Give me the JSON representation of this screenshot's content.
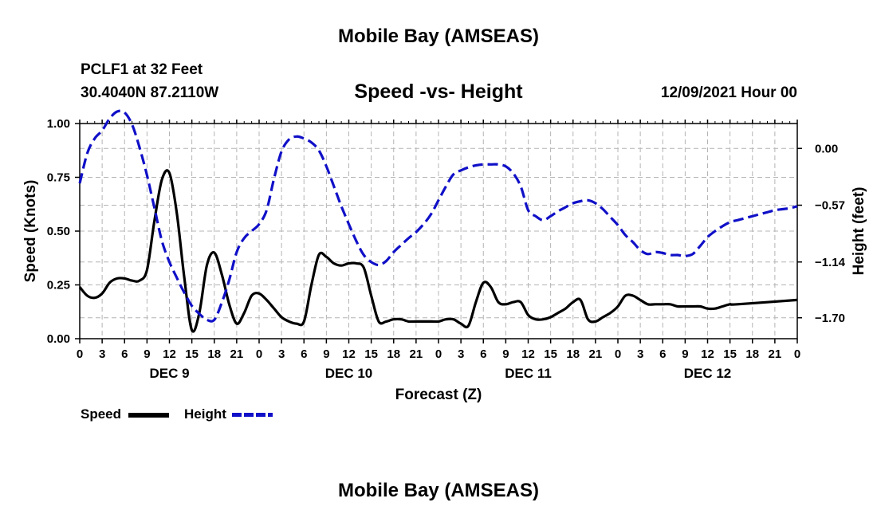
{
  "page": {
    "title": "Mobile Bay (AMSEAS)",
    "title_repeat": "Mobile Bay (AMSEAS)",
    "station": "PCLF1 at 32 Feet",
    "location": "30.4040N  87.2110W",
    "chart_subtitle": "Speed -vs- Height",
    "datetime": "12/09/2021 Hour 00"
  },
  "chart_data": {
    "type": "line",
    "title": "Speed -vs- Height",
    "xlabel": "Forecast (Z)",
    "ylabel": "Speed (Knots)",
    "y2label": "Height (feet)",
    "x_range_hours": [
      0,
      96
    ],
    "ylim": [
      0,
      1.0
    ],
    "y2lim": [
      -1.91,
      0.25
    ],
    "yticks": [
      "0.00",
      "0.25",
      "0.50",
      "0.75",
      "1.00"
    ],
    "y2ticks": [
      "0.00",
      "−0.57",
      "−1.14",
      "−1.70"
    ],
    "y2tick_values": [
      0.0,
      -0.57,
      -1.14,
      -1.7
    ],
    "xtick_labels": [
      "0",
      "3",
      "6",
      "9",
      "12",
      "15",
      "18",
      "21",
      "0",
      "3",
      "6",
      "9",
      "12",
      "15",
      "18",
      "21",
      "0",
      "3",
      "6",
      "9",
      "12",
      "15",
      "18",
      "21",
      "0",
      "3",
      "6",
      "9",
      "12",
      "15",
      "18",
      "21",
      "0"
    ],
    "day_labels": [
      {
        "label": "DEC 9",
        "hour": 12
      },
      {
        "label": "DEC 10",
        "hour": 36
      },
      {
        "label": "DEC 11",
        "hour": 60
      },
      {
        "label": "DEC 12",
        "hour": 84
      }
    ],
    "grid": true,
    "legend_position": "bottom-left",
    "series": [
      {
        "name": "Speed",
        "axis": "left",
        "color": "#000000",
        "style": "solid",
        "points": [
          [
            0,
            0.24
          ],
          [
            1,
            0.2
          ],
          [
            2,
            0.19
          ],
          [
            3,
            0.21
          ],
          [
            4,
            0.26
          ],
          [
            5,
            0.28
          ],
          [
            6,
            0.28
          ],
          [
            7,
            0.27
          ],
          [
            8,
            0.27
          ],
          [
            9,
            0.32
          ],
          [
            10,
            0.55
          ],
          [
            11,
            0.74
          ],
          [
            12,
            0.77
          ],
          [
            13,
            0.58
          ],
          [
            14,
            0.28
          ],
          [
            15,
            0.04
          ],
          [
            16,
            0.12
          ],
          [
            17,
            0.34
          ],
          [
            18,
            0.4
          ],
          [
            19,
            0.3
          ],
          [
            20,
            0.16
          ],
          [
            21,
            0.07
          ],
          [
            22,
            0.12
          ],
          [
            23,
            0.2
          ],
          [
            24,
            0.21
          ],
          [
            25,
            0.18
          ],
          [
            26,
            0.14
          ],
          [
            27,
            0.1
          ],
          [
            28,
            0.08
          ],
          [
            29,
            0.07
          ],
          [
            30,
            0.08
          ],
          [
            31,
            0.25
          ],
          [
            32,
            0.39
          ],
          [
            33,
            0.38
          ],
          [
            34,
            0.35
          ],
          [
            35,
            0.34
          ],
          [
            36,
            0.35
          ],
          [
            37,
            0.35
          ],
          [
            38,
            0.33
          ],
          [
            39,
            0.2
          ],
          [
            40,
            0.08
          ],
          [
            41,
            0.08
          ],
          [
            42,
            0.09
          ],
          [
            43,
            0.09
          ],
          [
            44,
            0.08
          ],
          [
            45,
            0.08
          ],
          [
            46,
            0.08
          ],
          [
            47,
            0.08
          ],
          [
            48,
            0.08
          ],
          [
            49,
            0.09
          ],
          [
            50,
            0.09
          ],
          [
            51,
            0.07
          ],
          [
            52,
            0.06
          ],
          [
            53,
            0.17
          ],
          [
            54,
            0.26
          ],
          [
            55,
            0.24
          ],
          [
            56,
            0.17
          ],
          [
            57,
            0.16
          ],
          [
            58,
            0.17
          ],
          [
            59,
            0.17
          ],
          [
            60,
            0.11
          ],
          [
            61,
            0.09
          ],
          [
            62,
            0.09
          ],
          [
            63,
            0.1
          ],
          [
            64,
            0.12
          ],
          [
            65,
            0.14
          ],
          [
            66,
            0.17
          ],
          [
            67,
            0.18
          ],
          [
            68,
            0.09
          ],
          [
            69,
            0.08
          ],
          [
            70,
            0.1
          ],
          [
            71,
            0.12
          ],
          [
            72,
            0.15
          ],
          [
            73,
            0.2
          ],
          [
            74,
            0.2
          ],
          [
            75,
            0.18
          ],
          [
            76,
            0.16
          ],
          [
            77,
            0.16
          ],
          [
            78,
            0.16
          ],
          [
            79,
            0.16
          ],
          [
            80,
            0.15
          ],
          [
            81,
            0.15
          ],
          [
            82,
            0.15
          ],
          [
            83,
            0.15
          ],
          [
            84,
            0.14
          ],
          [
            85,
            0.14
          ],
          [
            86,
            0.15
          ],
          [
            87,
            0.16
          ],
          [
            88,
            0.16
          ],
          [
            96,
            0.18
          ]
        ]
      },
      {
        "name": "Height",
        "axis": "right",
        "color": "#1010c8",
        "style": "dashed",
        "points": [
          [
            0,
            -0.35
          ],
          [
            1,
            -0.05
          ],
          [
            2,
            0.1
          ],
          [
            3,
            0.18
          ],
          [
            4,
            0.3
          ],
          [
            5,
            0.37
          ],
          [
            6,
            0.36
          ],
          [
            7,
            0.24
          ],
          [
            8,
            0.01
          ],
          [
            9,
            -0.27
          ],
          [
            10,
            -0.6
          ],
          [
            11,
            -0.93
          ],
          [
            12,
            -1.14
          ],
          [
            13,
            -1.3
          ],
          [
            14,
            -1.45
          ],
          [
            15,
            -1.58
          ],
          [
            16,
            -1.66
          ],
          [
            17,
            -1.72
          ],
          [
            18,
            -1.72
          ],
          [
            19,
            -1.55
          ],
          [
            20,
            -1.32
          ],
          [
            21,
            -1.04
          ],
          [
            22,
            -0.9
          ],
          [
            23,
            -0.83
          ],
          [
            24,
            -0.76
          ],
          [
            25,
            -0.62
          ],
          [
            26,
            -0.3
          ],
          [
            27,
            -0.03
          ],
          [
            28,
            0.09
          ],
          [
            29,
            0.12
          ],
          [
            30,
            0.1
          ],
          [
            31,
            0.06
          ],
          [
            32,
            -0.02
          ],
          [
            33,
            -0.18
          ],
          [
            34,
            -0.38
          ],
          [
            35,
            -0.58
          ],
          [
            36,
            -0.76
          ],
          [
            37,
            -0.93
          ],
          [
            38,
            -1.07
          ],
          [
            39,
            -1.14
          ],
          [
            40,
            -1.17
          ],
          [
            41,
            -1.13
          ],
          [
            42,
            -1.04
          ],
          [
            43,
            -0.97
          ],
          [
            44,
            -0.9
          ],
          [
            45,
            -0.84
          ],
          [
            46,
            -0.76
          ],
          [
            47,
            -0.66
          ],
          [
            48,
            -0.52
          ],
          [
            49,
            -0.38
          ],
          [
            50,
            -0.26
          ],
          [
            51,
            -0.22
          ],
          [
            52,
            -0.19
          ],
          [
            53,
            -0.17
          ],
          [
            54,
            -0.16
          ],
          [
            55,
            -0.16
          ],
          [
            56,
            -0.16
          ],
          [
            57,
            -0.18
          ],
          [
            58,
            -0.25
          ],
          [
            59,
            -0.38
          ],
          [
            60,
            -0.62
          ],
          [
            61,
            -0.68
          ],
          [
            62,
            -0.72
          ],
          [
            63,
            -0.68
          ],
          [
            64,
            -0.63
          ],
          [
            65,
            -0.59
          ],
          [
            66,
            -0.55
          ],
          [
            67,
            -0.53
          ],
          [
            68,
            -0.52
          ],
          [
            69,
            -0.55
          ],
          [
            70,
            -0.61
          ],
          [
            71,
            -0.69
          ],
          [
            72,
            -0.77
          ],
          [
            73,
            -0.87
          ],
          [
            74,
            -0.94
          ],
          [
            75,
            -1.02
          ],
          [
            76,
            -1.06
          ],
          [
            77,
            -1.04
          ],
          [
            78,
            -1.05
          ],
          [
            79,
            -1.07
          ],
          [
            80,
            -1.07
          ],
          [
            81,
            -1.08
          ],
          [
            82,
            -1.06
          ],
          [
            83,
            -0.98
          ],
          [
            84,
            -0.89
          ],
          [
            85,
            -0.83
          ],
          [
            86,
            -0.78
          ],
          [
            87,
            -0.74
          ],
          [
            88,
            -0.72
          ],
          [
            89,
            -0.7
          ],
          [
            90,
            -0.68
          ],
          [
            91,
            -0.66
          ],
          [
            92,
            -0.64
          ],
          [
            93,
            -0.62
          ],
          [
            94,
            -0.61
          ],
          [
            95,
            -0.6
          ],
          [
            96,
            -0.58
          ]
        ]
      }
    ]
  }
}
